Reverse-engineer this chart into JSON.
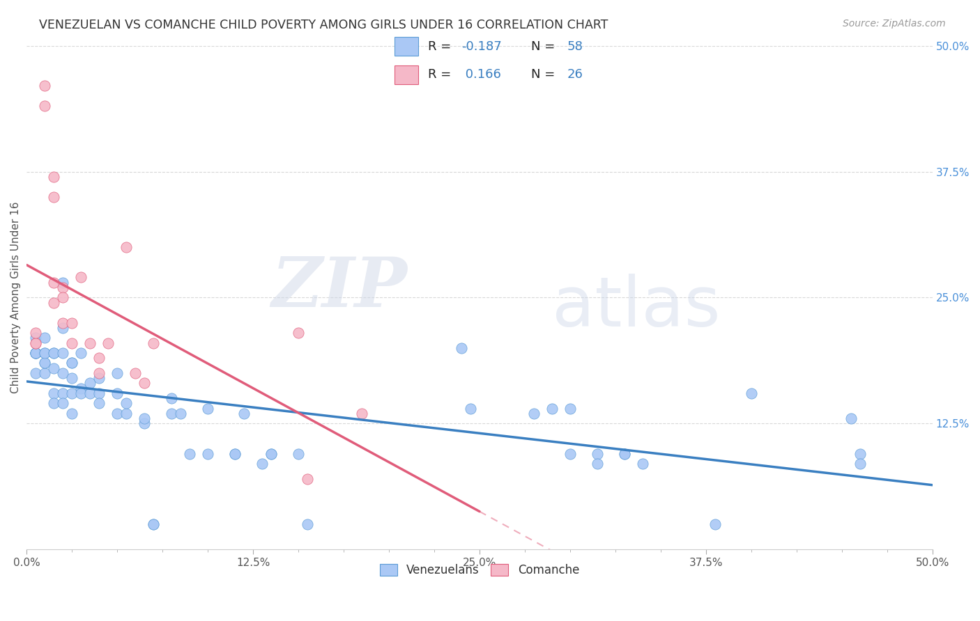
{
  "title": "VENEZUELAN VS COMANCHE CHILD POVERTY AMONG GIRLS UNDER 16 CORRELATION CHART",
  "source": "Source: ZipAtlas.com",
  "ylabel": "Child Poverty Among Girls Under 16",
  "xlim": [
    0.0,
    0.5
  ],
  "ylim": [
    0.0,
    0.5
  ],
  "xtick_labels": [
    "0.0%",
    "",
    "",
    "",
    "",
    "12.5%",
    "",
    "",
    "",
    "",
    "25.0%",
    "",
    "",
    "",
    "",
    "37.5%",
    "",
    "",
    "",
    "",
    "50.0%"
  ],
  "xtick_vals": [
    0.0,
    0.025,
    0.05,
    0.075,
    0.1,
    0.125,
    0.15,
    0.175,
    0.2,
    0.225,
    0.25,
    0.275,
    0.3,
    0.325,
    0.35,
    0.375,
    0.4,
    0.425,
    0.45,
    0.475,
    0.5
  ],
  "ytick_vals_right": [
    0.5,
    0.375,
    0.25,
    0.125
  ],
  "ytick_labels_right": [
    "50.0%",
    "37.5%",
    "25.0%",
    "12.5%"
  ],
  "venezuelan_color": "#aac8f5",
  "comanche_color": "#f5b8c8",
  "venezuelan_edge_color": "#5b9bd5",
  "comanche_edge_color": "#e05c7a",
  "venezuelan_line_color": "#3a7fc1",
  "comanche_line_color": "#e05c7a",
  "venezuelan_scatter": [
    [
      0.005,
      0.195
    ],
    [
      0.005,
      0.21
    ],
    [
      0.005,
      0.195
    ],
    [
      0.005,
      0.175
    ],
    [
      0.005,
      0.195
    ],
    [
      0.005,
      0.195
    ],
    [
      0.005,
      0.195
    ],
    [
      0.01,
      0.195
    ],
    [
      0.01,
      0.175
    ],
    [
      0.01,
      0.185
    ],
    [
      0.01,
      0.185
    ],
    [
      0.01,
      0.195
    ],
    [
      0.01,
      0.21
    ],
    [
      0.015,
      0.195
    ],
    [
      0.015,
      0.155
    ],
    [
      0.015,
      0.145
    ],
    [
      0.015,
      0.18
    ],
    [
      0.015,
      0.195
    ],
    [
      0.02,
      0.265
    ],
    [
      0.02,
      0.22
    ],
    [
      0.02,
      0.195
    ],
    [
      0.02,
      0.175
    ],
    [
      0.02,
      0.155
    ],
    [
      0.02,
      0.145
    ],
    [
      0.025,
      0.185
    ],
    [
      0.025,
      0.185
    ],
    [
      0.025,
      0.17
    ],
    [
      0.025,
      0.155
    ],
    [
      0.025,
      0.135
    ],
    [
      0.03,
      0.195
    ],
    [
      0.03,
      0.16
    ],
    [
      0.03,
      0.155
    ],
    [
      0.035,
      0.155
    ],
    [
      0.035,
      0.165
    ],
    [
      0.04,
      0.155
    ],
    [
      0.04,
      0.145
    ],
    [
      0.04,
      0.17
    ],
    [
      0.05,
      0.175
    ],
    [
      0.05,
      0.135
    ],
    [
      0.05,
      0.155
    ],
    [
      0.055,
      0.135
    ],
    [
      0.055,
      0.145
    ],
    [
      0.065,
      0.125
    ],
    [
      0.065,
      0.13
    ],
    [
      0.07,
      0.025
    ],
    [
      0.07,
      0.025
    ],
    [
      0.08,
      0.135
    ],
    [
      0.08,
      0.15
    ],
    [
      0.085,
      0.135
    ],
    [
      0.09,
      0.095
    ],
    [
      0.1,
      0.14
    ],
    [
      0.1,
      0.095
    ],
    [
      0.115,
      0.095
    ],
    [
      0.115,
      0.095
    ],
    [
      0.12,
      0.135
    ],
    [
      0.13,
      0.085
    ],
    [
      0.135,
      0.095
    ],
    [
      0.135,
      0.095
    ],
    [
      0.15,
      0.095
    ],
    [
      0.155,
      0.025
    ],
    [
      0.24,
      0.2
    ],
    [
      0.245,
      0.14
    ],
    [
      0.28,
      0.135
    ],
    [
      0.29,
      0.14
    ],
    [
      0.3,
      0.14
    ],
    [
      0.3,
      0.095
    ],
    [
      0.315,
      0.095
    ],
    [
      0.315,
      0.085
    ],
    [
      0.33,
      0.095
    ],
    [
      0.33,
      0.095
    ],
    [
      0.34,
      0.085
    ],
    [
      0.38,
      0.025
    ],
    [
      0.4,
      0.155
    ],
    [
      0.455,
      0.13
    ],
    [
      0.46,
      0.095
    ],
    [
      0.46,
      0.085
    ]
  ],
  "comanche_scatter": [
    [
      0.005,
      0.205
    ],
    [
      0.005,
      0.205
    ],
    [
      0.005,
      0.215
    ],
    [
      0.01,
      0.46
    ],
    [
      0.01,
      0.44
    ],
    [
      0.015,
      0.37
    ],
    [
      0.015,
      0.35
    ],
    [
      0.015,
      0.265
    ],
    [
      0.015,
      0.245
    ],
    [
      0.02,
      0.26
    ],
    [
      0.02,
      0.225
    ],
    [
      0.02,
      0.25
    ],
    [
      0.025,
      0.205
    ],
    [
      0.025,
      0.225
    ],
    [
      0.03,
      0.27
    ],
    [
      0.035,
      0.205
    ],
    [
      0.04,
      0.19
    ],
    [
      0.04,
      0.175
    ],
    [
      0.045,
      0.205
    ],
    [
      0.055,
      0.3
    ],
    [
      0.06,
      0.175
    ],
    [
      0.065,
      0.165
    ],
    [
      0.07,
      0.205
    ],
    [
      0.15,
      0.215
    ],
    [
      0.155,
      0.07
    ],
    [
      0.185,
      0.135
    ]
  ],
  "watermark_text": "ZIP",
  "watermark_text2": "atlas",
  "background_color": "#ffffff",
  "grid_color": "#d8d8d8"
}
